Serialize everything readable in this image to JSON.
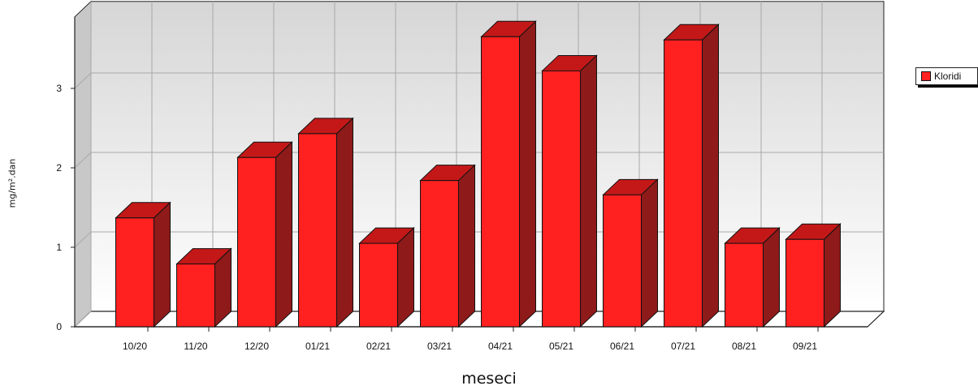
{
  "chart_data": {
    "type": "bar",
    "title": "",
    "xlabel": "meseci",
    "ylabel": "mg/m².dan",
    "categories": [
      "10/20",
      "11/20",
      "12/20",
      "01/21",
      "02/21",
      "03/21",
      "04/21",
      "05/21",
      "06/21",
      "07/21",
      "08/21",
      "09/21"
    ],
    "series": [
      {
        "name": "Kloridi",
        "color": "#ff2020",
        "values": [
          1.37,
          0.79,
          2.13,
          2.43,
          1.05,
          1.84,
          3.65,
          3.22,
          1.66,
          3.61,
          1.05,
          1.1
        ]
      }
    ],
    "ylim": [
      0,
      3.9
    ],
    "yticks": [
      0,
      1,
      2,
      3
    ],
    "grid": true,
    "legend_position": "top-right",
    "style": "3d-bar"
  }
}
